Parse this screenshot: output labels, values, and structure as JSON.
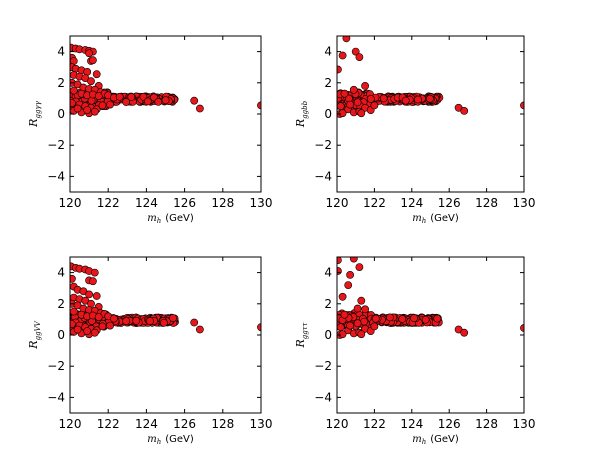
{
  "chart_data": [
    {
      "type": "scatter",
      "ylabel": "R_{ggγγ}",
      "ylabel_main": "R",
      "ylabel_sub": "ggγγ",
      "xlabel_main": "m",
      "xlabel_sub": "h",
      "xlabel_unit": "(GeV)",
      "xlim": [
        120,
        130
      ],
      "ylim": [
        -5,
        5
      ],
      "xticks": [
        "120",
        "122",
        "124",
        "126",
        "128",
        "130"
      ],
      "yticks": [
        "−4",
        "−2",
        "0",
        "2",
        "4"
      ],
      "marker_color": "#e8161b",
      "series": [
        {
          "points": [
            [
              120.05,
              4.25
            ],
            [
              120.3,
              4.2
            ],
            [
              120.5,
              4.15
            ],
            [
              120.8,
              4.1
            ],
            [
              121.0,
              4.05
            ],
            [
              121.2,
              4.0
            ],
            [
              121.0,
              3.9
            ],
            [
              121.1,
              3.4
            ],
            [
              121.2,
              3.45
            ],
            [
              120.1,
              3.6
            ],
            [
              120.2,
              3.4
            ],
            [
              120.1,
              3.0
            ],
            [
              120.3,
              2.9
            ],
            [
              120.6,
              2.8
            ],
            [
              120.9,
              2.7
            ],
            [
              121.4,
              2.55
            ],
            [
              120.2,
              2.5
            ],
            [
              120.5,
              2.4
            ],
            [
              120.8,
              2.3
            ],
            [
              121.1,
              2.1
            ],
            [
              121.5,
              1.8
            ],
            [
              120.1,
              2.0
            ],
            [
              120.4,
              1.9
            ],
            [
              120.7,
              1.7
            ],
            [
              121.0,
              1.6
            ],
            [
              121.3,
              1.55
            ],
            [
              121.6,
              1.4
            ],
            [
              121.8,
              1.3
            ],
            [
              120.2,
              1.5
            ],
            [
              120.6,
              1.3
            ],
            [
              120.9,
              1.2
            ],
            [
              121.2,
              1.25
            ],
            [
              121.5,
              1.15
            ],
            [
              122.0,
              1.2
            ],
            [
              122.3,
              1.05
            ],
            [
              122.6,
              1.1
            ],
            [
              120.3,
              0.8
            ],
            [
              120.5,
              0.6
            ],
            [
              120.8,
              0.5
            ],
            [
              121.1,
              0.4
            ],
            [
              121.4,
              0.3
            ],
            [
              120.2,
              0.2
            ],
            [
              120.6,
              0.1
            ],
            [
              121.0,
              0.05
            ],
            [
              120.1,
              0.7
            ],
            [
              120.4,
              0.35
            ],
            [
              120.9,
              0.25
            ],
            [
              121.3,
              0.15
            ],
            [
              121.7,
              0.55
            ],
            [
              122.1,
              0.6
            ],
            [
              126.5,
              0.85
            ],
            [
              126.8,
              0.35
            ],
            [
              130.0,
              0.55
            ]
          ]
        }
      ]
    },
    {
      "type": "scatter",
      "ylabel": "R_{ggbb}",
      "ylabel_main": "R",
      "ylabel_sub": "ggbb",
      "xlabel_main": "m",
      "xlabel_sub": "h",
      "xlabel_unit": "(GeV)",
      "xlim": [
        120,
        130
      ],
      "ylim": [
        -5,
        5
      ],
      "xticks": [
        "120",
        "122",
        "124",
        "126",
        "128",
        "130"
      ],
      "yticks": [
        "−4",
        "−2",
        "0",
        "2",
        "4"
      ],
      "marker_color": "#e8161b",
      "series": [
        {
          "points": [
            [
              120.5,
              4.85
            ],
            [
              121.0,
              4.0
            ],
            [
              121.2,
              3.65
            ],
            [
              120.3,
              3.75
            ],
            [
              120.05,
              2.85
            ],
            [
              120.9,
              1.55
            ],
            [
              121.5,
              1.8
            ],
            [
              120.4,
              1.3
            ],
            [
              120.2,
              0.5
            ],
            [
              120.6,
              0.3
            ],
            [
              120.9,
              0.1
            ],
            [
              121.2,
              0.15
            ],
            [
              120.15,
              0.0
            ],
            [
              121.5,
              0.4
            ],
            [
              121.8,
              0.25
            ],
            [
              122.0,
              0.55
            ],
            [
              120.7,
              0.6
            ],
            [
              121.1,
              0.75
            ],
            [
              120.3,
              0.05
            ],
            [
              121.3,
              0.05
            ],
            [
              126.5,
              0.4
            ],
            [
              126.8,
              0.2
            ],
            [
              130.0,
              0.55
            ]
          ]
        }
      ]
    },
    {
      "type": "scatter",
      "ylabel": "R_{ggVV}",
      "ylabel_main": "R",
      "ylabel_sub": "ggVV",
      "xlabel_main": "m",
      "xlabel_sub": "h",
      "xlabel_unit": "(GeV)",
      "xlim": [
        120,
        130
      ],
      "ylim": [
        -5,
        5
      ],
      "xticks": [
        "120",
        "122",
        "124",
        "126",
        "128",
        "130"
      ],
      "yticks": [
        "−4",
        "−2",
        "0",
        "2",
        "4"
      ],
      "marker_color": "#e8161b",
      "series": [
        {
          "points": [
            [
              120.05,
              4.4
            ],
            [
              120.3,
              4.3
            ],
            [
              120.5,
              4.25
            ],
            [
              120.8,
              4.2
            ],
            [
              121.0,
              4.1
            ],
            [
              121.3,
              4.0
            ],
            [
              121.0,
              3.5
            ],
            [
              121.2,
              3.45
            ],
            [
              120.1,
              3.6
            ],
            [
              120.2,
              3.1
            ],
            [
              120.4,
              2.9
            ],
            [
              120.7,
              2.8
            ],
            [
              121.0,
              2.6
            ],
            [
              121.4,
              2.5
            ],
            [
              120.2,
              2.4
            ],
            [
              120.5,
              2.3
            ],
            [
              120.8,
              2.2
            ],
            [
              121.1,
              2.0
            ],
            [
              121.5,
              1.8
            ],
            [
              120.1,
              2.0
            ],
            [
              120.4,
              1.9
            ],
            [
              120.7,
              1.7
            ],
            [
              121.0,
              1.6
            ],
            [
              121.3,
              1.55
            ],
            [
              121.6,
              1.4
            ],
            [
              121.8,
              1.35
            ],
            [
              120.2,
              1.5
            ],
            [
              120.6,
              1.3
            ],
            [
              120.9,
              1.2
            ],
            [
              121.2,
              1.25
            ],
            [
              121.5,
              1.15
            ],
            [
              122.0,
              1.2
            ],
            [
              122.3,
              1.05
            ],
            [
              120.3,
              0.8
            ],
            [
              120.5,
              0.6
            ],
            [
              120.8,
              0.5
            ],
            [
              121.1,
              0.4
            ],
            [
              121.4,
              0.3
            ],
            [
              120.2,
              0.2
            ],
            [
              120.6,
              0.1
            ],
            [
              121.0,
              0.05
            ],
            [
              120.1,
              0.7
            ],
            [
              120.4,
              0.35
            ],
            [
              120.9,
              0.25
            ],
            [
              121.3,
              0.15
            ],
            [
              121.7,
              0.55
            ],
            [
              122.1,
              0.6
            ],
            [
              126.5,
              0.8
            ],
            [
              126.8,
              0.35
            ],
            [
              130.0,
              0.5
            ]
          ]
        }
      ]
    },
    {
      "type": "scatter",
      "ylabel": "R_{ggττ}",
      "ylabel_main": "R",
      "ylabel_sub": "ggττ",
      "xlabel_main": "m",
      "xlabel_sub": "h",
      "xlabel_unit": "(GeV)",
      "xlim": [
        120,
        130
      ],
      "ylim": [
        -5,
        5
      ],
      "xticks": [
        "120",
        "122",
        "124",
        "126",
        "128",
        "130"
      ],
      "yticks": [
        "−4",
        "−2",
        "0",
        "2",
        "4"
      ],
      "marker_color": "#e8161b",
      "series": [
        {
          "points": [
            [
              120.05,
              4.8
            ],
            [
              120.9,
              4.9
            ],
            [
              120.05,
              4.1
            ],
            [
              121.2,
              4.35
            ],
            [
              120.7,
              3.85
            ],
            [
              120.6,
              3.2
            ],
            [
              120.3,
              2.45
            ],
            [
              121.3,
              2.2
            ],
            [
              121.1,
              1.7
            ],
            [
              121.5,
              1.65
            ],
            [
              120.4,
              1.3
            ],
            [
              120.2,
              0.5
            ],
            [
              120.6,
              0.3
            ],
            [
              120.9,
              0.1
            ],
            [
              121.2,
              0.15
            ],
            [
              120.15,
              0.0
            ],
            [
              121.5,
              0.4
            ],
            [
              121.8,
              0.25
            ],
            [
              122.0,
              0.55
            ],
            [
              120.7,
              0.6
            ],
            [
              121.1,
              0.75
            ],
            [
              120.3,
              0.05
            ],
            [
              121.3,
              0.05
            ],
            [
              126.5,
              0.35
            ],
            [
              126.8,
              0.15
            ],
            [
              130.0,
              0.45
            ]
          ]
        }
      ]
    }
  ]
}
